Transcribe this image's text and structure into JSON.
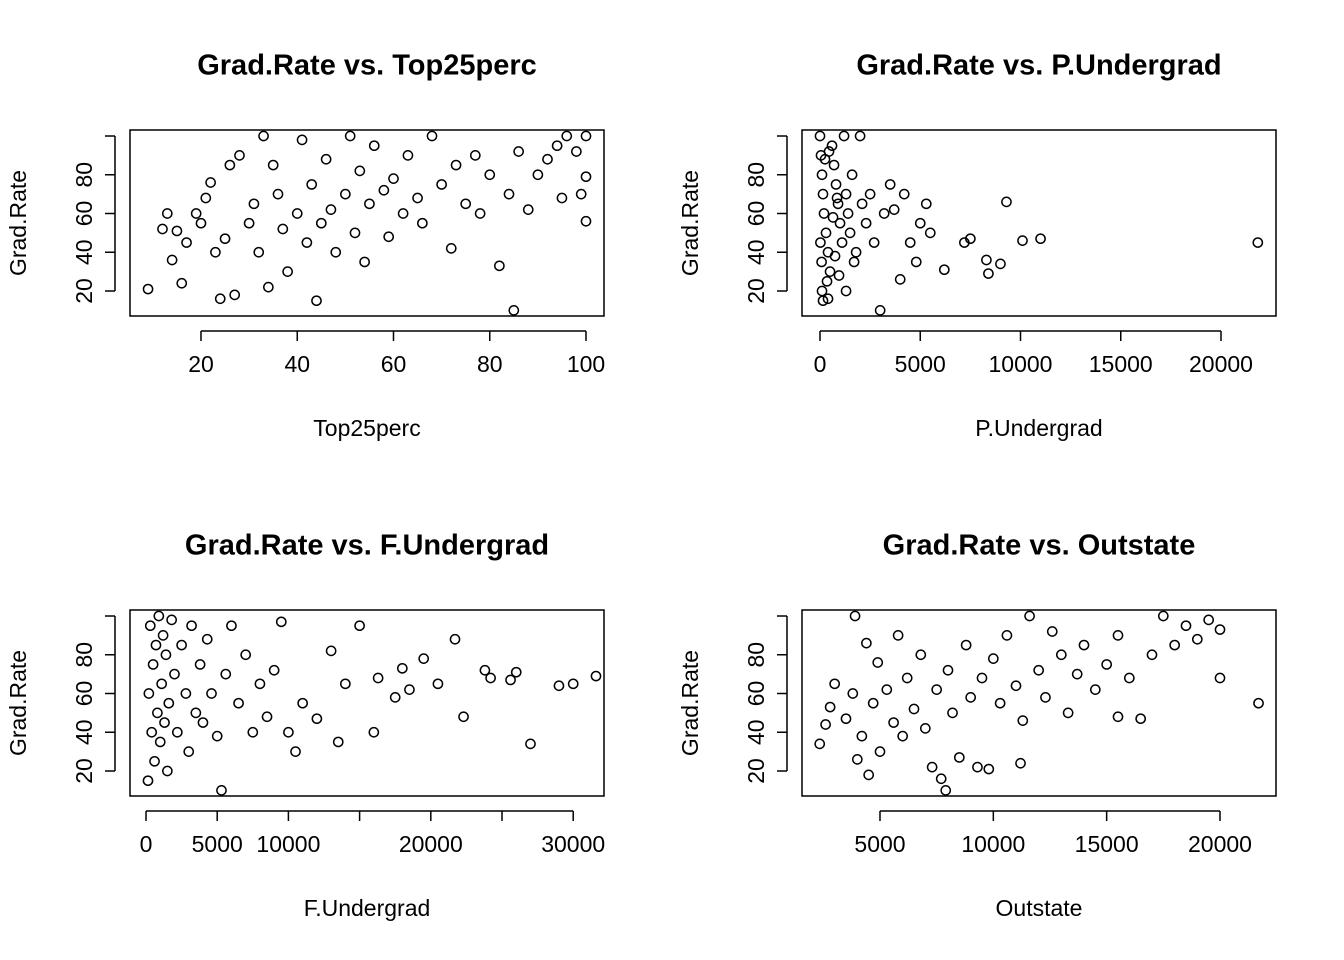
{
  "chart_data": [
    {
      "type": "scatter",
      "title": "Grad.Rate vs. Top25perc",
      "xlabel": "Top25perc",
      "ylabel": "Grad.Rate",
      "color": "#000000",
      "xlim": [
        5.25,
        103.74
      ],
      "ylim": [
        7.1,
        103.1
      ],
      "xticks": [
        20,
        40,
        60,
        80,
        100
      ],
      "yticks": [
        20,
        40,
        60,
        80,
        100
      ],
      "x": [
        9,
        12,
        13,
        14,
        15,
        16,
        17,
        19,
        20,
        21,
        22,
        23,
        24,
        25,
        26,
        27,
        28,
        30,
        31,
        32,
        33,
        34,
        35,
        36,
        37,
        38,
        40,
        41,
        42,
        43,
        44,
        45,
        46,
        47,
        48,
        50,
        51,
        52,
        53,
        54,
        55,
        56,
        58,
        59,
        60,
        62,
        63,
        65,
        66,
        68,
        70,
        72,
        73,
        75,
        77,
        78,
        80,
        82,
        84,
        85,
        86,
        88,
        90,
        92,
        94,
        95,
        96,
        98,
        99,
        100,
        100,
        100
      ],
      "y": [
        21,
        52,
        60,
        36,
        51,
        24,
        45,
        60,
        55,
        68,
        76,
        40,
        16,
        47,
        85,
        18,
        90,
        55,
        65,
        40,
        100,
        22,
        85,
        70,
        52,
        30,
        60,
        98,
        45,
        75,
        15,
        55,
        88,
        62,
        40,
        70,
        100,
        50,
        82,
        35,
        65,
        95,
        72,
        48,
        78,
        60,
        90,
        68,
        55,
        100,
        75,
        42,
        85,
        65,
        90,
        60,
        80,
        33,
        70,
        10,
        92,
        62,
        80,
        88,
        95,
        68,
        100,
        92,
        70,
        56,
        79,
        100
      ]
    },
    {
      "type": "scatter",
      "title": "Grad.Rate vs. P.Undergrad",
      "xlabel": "P.Undergrad",
      "ylabel": "Grad.Rate",
      "color": "#000000",
      "xlim": [
        -898,
        22743
      ],
      "ylim": [
        7.1,
        103.1
      ],
      "xticks": [
        0,
        5000,
        10000,
        15000,
        20000
      ],
      "yticks": [
        20,
        40,
        60,
        80,
        100
      ],
      "x": [
        0,
        50,
        100,
        150,
        200,
        300,
        400,
        500,
        100,
        150,
        600,
        700,
        800,
        900,
        1000,
        1100,
        1200,
        1300,
        1400,
        1500,
        1600,
        1800,
        2000,
        2100,
        2300,
        2500,
        2700,
        3000,
        3200,
        3500,
        3700,
        4000,
        4200,
        4500,
        4800,
        5000,
        5300,
        5500,
        6200,
        7200,
        7500,
        8300,
        8400,
        9000,
        9300,
        10100,
        11000,
        21836,
        20,
        80,
        250,
        350,
        450,
        650,
        750,
        850,
        950,
        1700,
        400,
        1300
      ],
      "y": [
        100,
        90,
        80,
        70,
        60,
        50,
        40,
        30,
        20,
        15,
        95,
        85,
        75,
        65,
        55,
        45,
        100,
        70,
        60,
        50,
        80,
        40,
        100,
        65,
        55,
        70,
        45,
        10,
        60,
        75,
        62,
        26,
        70,
        45,
        35,
        55,
        65,
        50,
        31,
        45,
        47,
        36,
        29,
        34,
        66,
        46,
        47,
        45,
        45,
        35,
        88,
        25,
        92,
        58,
        38,
        68,
        28,
        35,
        16,
        20
      ]
    },
    {
      "type": "scatter",
      "title": "Grad.Rate vs. F.Undergrad",
      "xlabel": "F.Undergrad",
      "ylabel": "Grad.Rate",
      "color": "#000000",
      "xlim": [
        -1124,
        32163
      ],
      "ylim": [
        7.1,
        103.1
      ],
      "xticks": [
        0,
        5000,
        10000,
        15000,
        20000,
        25000,
        30000
      ],
      "yticks": [
        20,
        40,
        60,
        80,
        100
      ],
      "x": [
        139,
        200,
        300,
        400,
        500,
        600,
        700,
        800,
        900,
        1000,
        1100,
        1200,
        1300,
        1400,
        1500,
        1600,
        1800,
        2000,
        2200,
        2500,
        2800,
        3000,
        3200,
        3500,
        3800,
        4000,
        4300,
        4600,
        5000,
        5300,
        5600,
        6000,
        6500,
        7000,
        7500,
        8000,
        8500,
        9000,
        9500,
        10000,
        10500,
        11000,
        12000,
        13000,
        13500,
        14000,
        15000,
        16000,
        16300,
        17500,
        18000,
        18500,
        19500,
        20500,
        21700,
        22300,
        23800,
        24200,
        25600,
        26000,
        27000,
        29000,
        30000,
        31600
      ],
      "y": [
        15,
        60,
        95,
        40,
        75,
        25,
        85,
        50,
        100,
        35,
        65,
        90,
        45,
        80,
        20,
        55,
        98,
        70,
        40,
        85,
        60,
        30,
        95,
        50,
        75,
        45,
        88,
        60,
        38,
        10,
        70,
        95,
        55,
        80,
        40,
        65,
        48,
        72,
        97,
        40,
        30,
        55,
        47,
        82,
        35,
        65,
        95,
        40,
        68,
        58,
        73,
        62,
        78,
        65,
        88,
        48,
        72,
        68,
        67,
        71,
        34,
        64,
        65,
        69
      ]
    },
    {
      "type": "scatter",
      "title": "Grad.Rate vs. Outstate",
      "xlabel": "Outstate",
      "ylabel": "Grad.Rate",
      "color": "#000000",
      "xlim": [
        1559,
        22471
      ],
      "ylim": [
        7.1,
        103.1
      ],
      "xticks": [
        5000,
        10000,
        15000,
        20000
      ],
      "yticks": [
        20,
        40,
        60,
        80,
        100
      ],
      "x": [
        2340,
        2600,
        2800,
        3000,
        3500,
        3800,
        3900,
        4000,
        4200,
        4400,
        4500,
        4700,
        4900,
        5000,
        5300,
        5600,
        5800,
        6000,
        6200,
        6500,
        6800,
        7000,
        7300,
        7500,
        7700,
        7900,
        8000,
        8200,
        8500,
        8800,
        9000,
        9300,
        9500,
        9800,
        10000,
        10300,
        10600,
        11000,
        11300,
        11600,
        12000,
        12300,
        12600,
        13000,
        13300,
        13700,
        14000,
        14500,
        15000,
        15500,
        16000,
        16500,
        17000,
        17500,
        18000,
        18500,
        19000,
        19500,
        20000,
        20000,
        21700,
        15500,
        11200
      ],
      "y": [
        34,
        44,
        53,
        65,
        47,
        60,
        100,
        26,
        38,
        86,
        18,
        55,
        76,
        30,
        62,
        45,
        90,
        38,
        68,
        52,
        80,
        42,
        22,
        62,
        16,
        10,
        72,
        50,
        27,
        85,
        58,
        22,
        68,
        21,
        78,
        55,
        90,
        64,
        46,
        100,
        72,
        58,
        92,
        80,
        50,
        70,
        85,
        62,
        75,
        90,
        68,
        47,
        80,
        100,
        85,
        95,
        88,
        98,
        93,
        68,
        55,
        48,
        24
      ]
    }
  ]
}
